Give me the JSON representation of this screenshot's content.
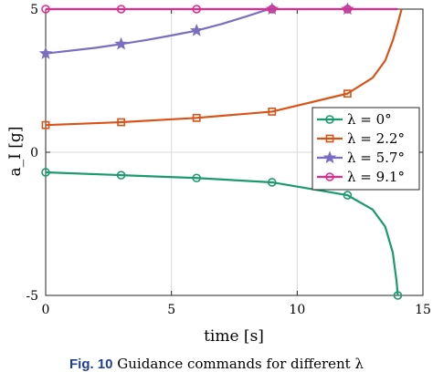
{
  "chart_data": {
    "type": "line",
    "xlabel": "time [s]",
    "ylabel": "a_I [g]",
    "xlim": [
      0,
      15
    ],
    "ylim": [
      -5,
      5
    ],
    "x_ticks": [
      "0",
      "5",
      "10",
      "15"
    ],
    "y_ticks": [
      "-5",
      "0",
      "5"
    ],
    "grid": true,
    "legend_position": "right",
    "series": [
      {
        "name": "λ = 0°",
        "color": "#1a9a6e",
        "marker": "circle",
        "x": [
          0,
          3,
          6,
          9,
          12,
          13,
          13.5,
          13.8,
          13.95,
          14.0
        ],
        "y": [
          -0.7,
          -0.8,
          -0.9,
          -1.05,
          -1.5,
          -2.0,
          -2.6,
          -3.5,
          -4.5,
          -5.0
        ],
        "marker_x": [
          0,
          3,
          6,
          9,
          12,
          14.0
        ],
        "marker_y": [
          -0.7,
          -0.8,
          -0.9,
          -1.05,
          -1.5,
          -5.0
        ]
      },
      {
        "name": "λ = 2.2°",
        "color": "#d95319",
        "marker": "square",
        "x": [
          0,
          3,
          6,
          9,
          12,
          13,
          13.5,
          13.8,
          14.0,
          14.15
        ],
        "y": [
          0.95,
          1.05,
          1.2,
          1.42,
          2.05,
          2.6,
          3.2,
          3.9,
          4.5,
          5.0
        ],
        "marker_x": [
          0,
          3,
          6,
          9,
          12
        ],
        "marker_y": [
          0.95,
          1.05,
          1.2,
          1.42,
          2.05
        ]
      },
      {
        "name": "λ = 5.7°",
        "color": "#7a6ec2",
        "marker": "star",
        "x": [
          0,
          2,
          3,
          4,
          5,
          6,
          7,
          8,
          8.7,
          9.0
        ],
        "y": [
          3.45,
          3.65,
          3.78,
          3.92,
          4.08,
          4.25,
          4.48,
          4.75,
          4.95,
          5.0
        ],
        "marker_x": [
          0,
          3,
          6,
          9,
          12
        ],
        "marker_y": [
          3.45,
          3.78,
          4.25,
          5.0,
          5.0
        ]
      },
      {
        "name": "λ = 9.1°",
        "color": "#e7298a",
        "marker": "circle",
        "x": [
          0,
          3,
          6,
          9,
          12,
          14.0
        ],
        "y": [
          5.0,
          5.0,
          5.0,
          5.0,
          5.0,
          5.0
        ],
        "marker_x": [
          0,
          3,
          6,
          9,
          12
        ],
        "marker_y": [
          5.0,
          5.0,
          5.0,
          5.0,
          5.0
        ]
      }
    ]
  },
  "caption": {
    "label": "Fig. 10",
    "text": "Guidance commands for different λ"
  }
}
